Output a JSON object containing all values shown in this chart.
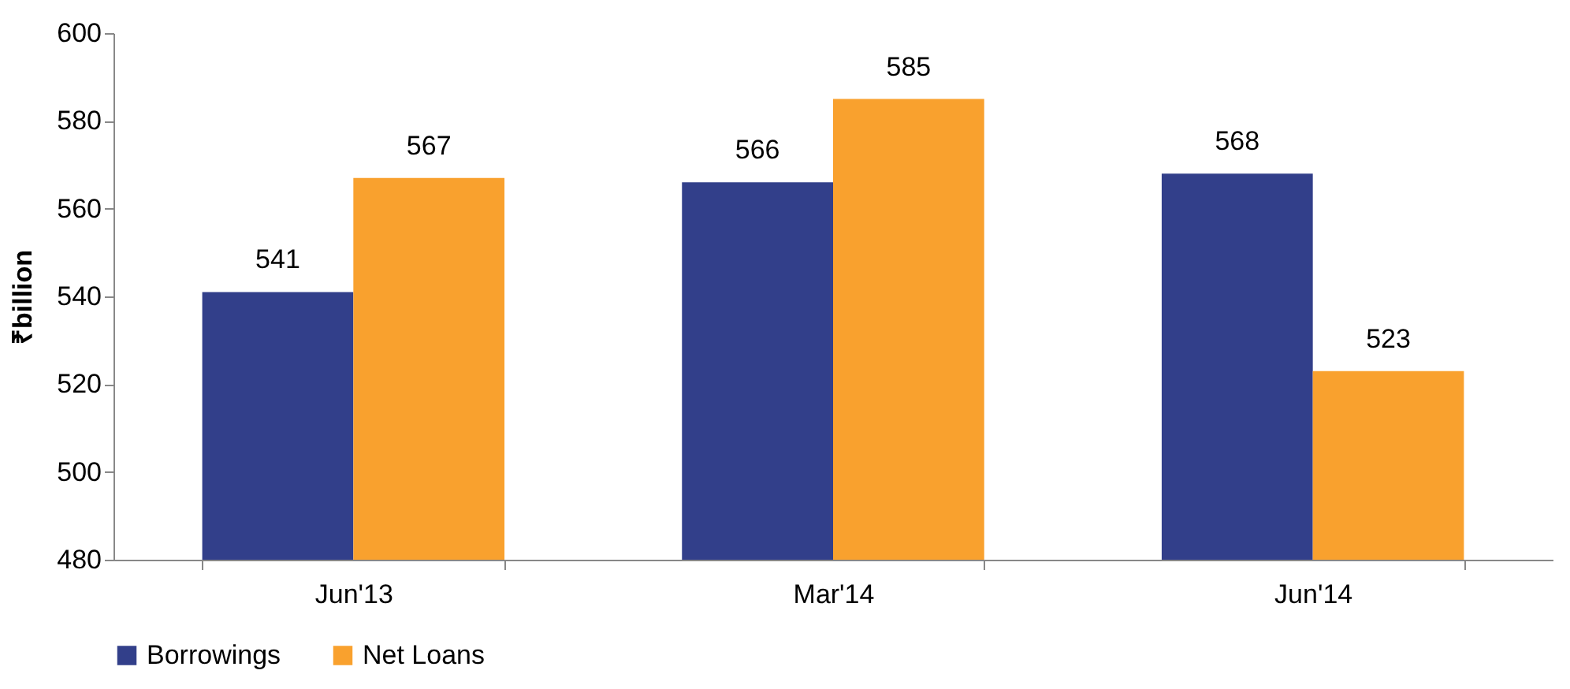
{
  "chart_data": {
    "type": "bar",
    "ylabel": "₹billion",
    "categories": [
      "Jun'13",
      "Mar'14",
      "Jun'14"
    ],
    "series": [
      {
        "name": "Borrowings",
        "color": "#323f8a",
        "values": [
          541,
          566,
          568
        ]
      },
      {
        "name": "Net Loans",
        "color": "#f9a12e",
        "values": [
          567,
          585,
          523
        ]
      }
    ],
    "ylim": [
      480,
      600
    ],
    "yticks": [
      480,
      500,
      520,
      540,
      560,
      580,
      600
    ],
    "data_labels": true,
    "legend": "bottom",
    "grid": false
  }
}
